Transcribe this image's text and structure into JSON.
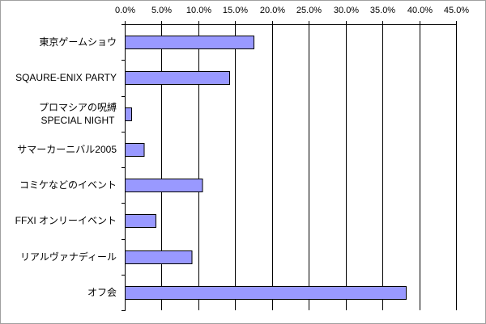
{
  "chart_data": {
    "type": "bar",
    "orientation": "horizontal",
    "categories": [
      "東京ゲームショウ",
      "SQAURE-ENIX PARTY",
      "プロマシアの呪縛\nSPECIAL NIGHT",
      "サマーカーニバル2005",
      "コミケなどのイベント",
      "FFXI オンリーイベント",
      "リアルヴァナディール",
      "オフ会"
    ],
    "values": [
      17.5,
      14.2,
      0.9,
      2.6,
      10.5,
      4.2,
      9.1,
      38.2
    ],
    "xlim": [
      0,
      45
    ],
    "xticks": [
      0,
      5,
      10,
      15,
      20,
      25,
      30,
      35,
      40,
      45
    ],
    "xtick_labels": [
      "0.0%",
      "5.0%",
      "10.0%",
      "15.0%",
      "20.0%",
      "25.0%",
      "30.0%",
      "35.0%",
      "40.0%",
      "45.0%"
    ],
    "x_axis_position": "top",
    "gridlines": "vertical",
    "legend": "none",
    "colors": {
      "bar_fill": "#9999FF",
      "bar_stroke": "#000000",
      "grid": "#000000",
      "text": "#000000",
      "frame": "#A0A0A0"
    }
  }
}
